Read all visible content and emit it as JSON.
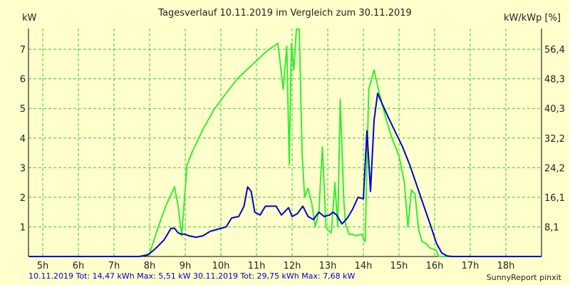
{
  "title": "Tagesverlauf 10.11.2019 im Vergleich zum 30.11.2019",
  "left_unit": "kW",
  "right_unit": "kW/kWp [%]",
  "footer": {
    "series1_text": "10.11.2019 Tot: 14,47 kWh Max: 5,51 kW",
    "series2_text": "30.11.2019 Tot: 29,75 kWh Max: 7,68 kW"
  },
  "brand": "SunnyReport pinxit",
  "colors": {
    "background": "#ffffcc",
    "grid": "#33cc33",
    "series1": "#0000cc",
    "series2": "#33ee33"
  },
  "chart_data": {
    "type": "line",
    "title": "Tagesverlauf 10.11.2019 im Vergleich zum 30.11.2019",
    "ylabel": "kW",
    "y2label": "kW/kWp [%]",
    "x_ticks": [
      5,
      6,
      7,
      8,
      9,
      10,
      11,
      12,
      13,
      14,
      15,
      16,
      17,
      18
    ],
    "x_tick_labels": [
      "5h",
      "6h",
      "7h",
      "8h",
      "9h",
      "10h",
      "11h",
      "12h",
      "13h",
      "14h",
      "15h",
      "16h",
      "17h",
      "18h"
    ],
    "xlim": [
      4.6,
      19.0
    ],
    "ylim": [
      0,
      7.7
    ],
    "y_ticks": [
      1,
      2,
      3,
      4,
      5,
      6,
      7
    ],
    "y_tick_labels": [
      "1",
      "2",
      "3",
      "4",
      "5",
      "6",
      "7"
    ],
    "y2_ticks": [
      1,
      2,
      3,
      4,
      5,
      6,
      7
    ],
    "y2_tick_labels": [
      "8,1",
      "16,1",
      "24,2",
      "32,2",
      "40,3",
      "48,3",
      "56,4"
    ],
    "grid": true,
    "series": [
      {
        "name": "10.11.2019",
        "color": "#0000cc",
        "x": [
          4.6,
          7.7,
          7.95,
          8.15,
          8.4,
          8.6,
          8.7,
          8.8,
          8.9,
          9.0,
          9.1,
          9.3,
          9.5,
          9.7,
          9.85,
          10.0,
          10.15,
          10.3,
          10.5,
          10.65,
          10.75,
          10.85,
          10.95,
          11.1,
          11.25,
          11.4,
          11.55,
          11.7,
          11.9,
          12.0,
          12.15,
          12.3,
          12.45,
          12.6,
          12.75,
          12.9,
          13.05,
          13.15,
          13.25,
          13.4,
          13.55,
          13.7,
          13.85,
          14.0,
          14.1,
          14.2,
          14.3,
          14.4,
          14.55,
          14.7,
          14.9,
          15.1,
          15.3,
          15.5,
          15.7,
          15.9,
          16.05,
          16.2,
          16.35,
          16.5,
          16.7,
          17.0,
          19.0
        ],
        "y": [
          0,
          0,
          0.05,
          0.25,
          0.55,
          0.95,
          0.95,
          0.8,
          0.75,
          0.75,
          0.7,
          0.65,
          0.7,
          0.85,
          0.9,
          0.95,
          1.0,
          1.3,
          1.35,
          1.7,
          2.35,
          2.2,
          1.5,
          1.4,
          1.7,
          1.7,
          1.7,
          1.4,
          1.65,
          1.35,
          1.45,
          1.7,
          1.35,
          1.25,
          1.5,
          1.35,
          1.4,
          1.5,
          1.4,
          1.1,
          1.3,
          1.6,
          2.0,
          1.95,
          4.25,
          2.2,
          4.6,
          5.51,
          5.1,
          4.7,
          4.2,
          3.7,
          3.1,
          2.4,
          1.7,
          1.0,
          0.45,
          0.12,
          0.02,
          0,
          0,
          0,
          0
        ]
      },
      {
        "name": "30.11.2019",
        "color": "#33ee33",
        "x": [
          4.6,
          7.75,
          8.0,
          8.2,
          8.45,
          8.7,
          8.8,
          8.9,
          9.05,
          9.2,
          9.5,
          9.8,
          10.2,
          10.5,
          10.9,
          11.3,
          11.6,
          11.75,
          11.85,
          11.92,
          11.98,
          12.05,
          12.12,
          12.2,
          12.28,
          12.35,
          12.45,
          12.55,
          12.65,
          12.75,
          12.85,
          12.95,
          13.0,
          13.1,
          13.2,
          13.28,
          13.35,
          13.45,
          13.5,
          13.6,
          13.7,
          13.8,
          13.95,
          14.05,
          14.15,
          14.3,
          14.45,
          14.6,
          14.8,
          15.0,
          15.15,
          15.25,
          15.35,
          15.45,
          15.55,
          15.65,
          15.75,
          15.85,
          15.95,
          16.05,
          16.1,
          16.2,
          19.0
        ],
        "y": [
          0,
          0,
          0.1,
          0.85,
          1.7,
          2.35,
          1.7,
          0.7,
          3.1,
          3.55,
          4.3,
          4.95,
          5.6,
          6.05,
          6.5,
          6.95,
          7.2,
          5.65,
          7.1,
          3.1,
          7.2,
          6.3,
          7.68,
          7.68,
          3.5,
          2.0,
          2.3,
          1.8,
          1.0,
          1.5,
          3.7,
          1.0,
          0.9,
          0.8,
          2.5,
          1.0,
          5.3,
          1.9,
          1.1,
          0.75,
          0.75,
          0.7,
          0.75,
          0.5,
          5.65,
          6.3,
          5.5,
          4.8,
          4.0,
          3.4,
          2.5,
          1.0,
          2.25,
          2.1,
          0.9,
          0.5,
          0.45,
          0.3,
          0.25,
          0.2,
          0.02,
          0,
          0
        ]
      }
    ]
  }
}
